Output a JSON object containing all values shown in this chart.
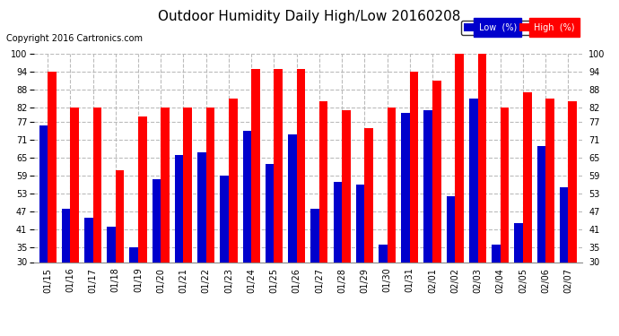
{
  "title": "Outdoor Humidity Daily High/Low 20160208",
  "copyright": "Copyright 2016 Cartronics.com",
  "dates": [
    "01/15",
    "01/16",
    "01/17",
    "01/18",
    "01/19",
    "01/20",
    "01/21",
    "01/22",
    "01/23",
    "01/24",
    "01/25",
    "01/26",
    "01/27",
    "01/28",
    "01/29",
    "01/30",
    "01/31",
    "02/01",
    "02/02",
    "02/03",
    "02/04",
    "02/05",
    "02/06",
    "02/07"
  ],
  "high": [
    94,
    82,
    82,
    61,
    79,
    82,
    82,
    82,
    85,
    95,
    95,
    95,
    84,
    81,
    75,
    82,
    94,
    91,
    100,
    100,
    82,
    87,
    85,
    84
  ],
  "low": [
    76,
    48,
    45,
    42,
    35,
    58,
    66,
    67,
    59,
    74,
    63,
    73,
    48,
    57,
    56,
    36,
    80,
    81,
    52,
    85,
    36,
    43,
    69,
    55
  ],
  "ylim_min": 30,
  "ylim_max": 100,
  "yticks": [
    30,
    35,
    41,
    47,
    53,
    59,
    65,
    71,
    77,
    82,
    88,
    94,
    100
  ],
  "bar_width": 0.38,
  "high_color": "#ff0000",
  "low_color": "#0000cc",
  "bg_color": "#ffffff",
  "grid_color": "#bbbbbb",
  "title_fontsize": 11,
  "tick_fontsize": 7,
  "copyright_fontsize": 7,
  "legend_low_label": "Low  (%)",
  "legend_high_label": "High  (%)"
}
